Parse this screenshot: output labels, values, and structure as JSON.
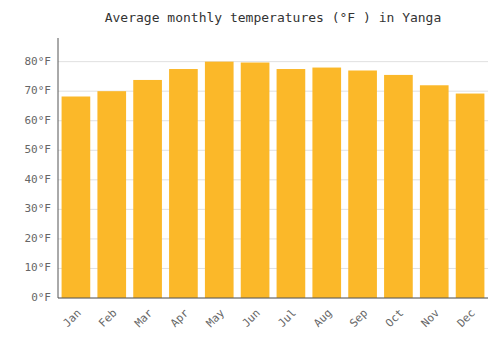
{
  "chart_data": {
    "type": "bar",
    "title": "Average monthly temperatures (°F ) in Yanga",
    "categories": [
      "Jan",
      "Feb",
      "Mar",
      "Apr",
      "May",
      "Jun",
      "Jul",
      "Aug",
      "Sep",
      "Oct",
      "Nov",
      "Dec"
    ],
    "values": [
      68.2,
      70.0,
      73.8,
      77.5,
      80.0,
      79.7,
      77.5,
      78.0,
      77.0,
      75.5,
      72.0,
      69.2
    ],
    "color": "#FBB829",
    "ylim": [
      0,
      88
    ],
    "yticks": [
      {
        "value": 0,
        "label": "0°F"
      },
      {
        "value": 10,
        "label": "10°F"
      },
      {
        "value": 20,
        "label": "20°F"
      },
      {
        "value": 30,
        "label": "30°F"
      },
      {
        "value": 40,
        "label": "40°F"
      },
      {
        "value": 50,
        "label": "50°F"
      },
      {
        "value": 60,
        "label": "60°F"
      },
      {
        "value": 70,
        "label": "70°F"
      },
      {
        "value": 80,
        "label": "80°F"
      }
    ],
    "grid": true
  }
}
